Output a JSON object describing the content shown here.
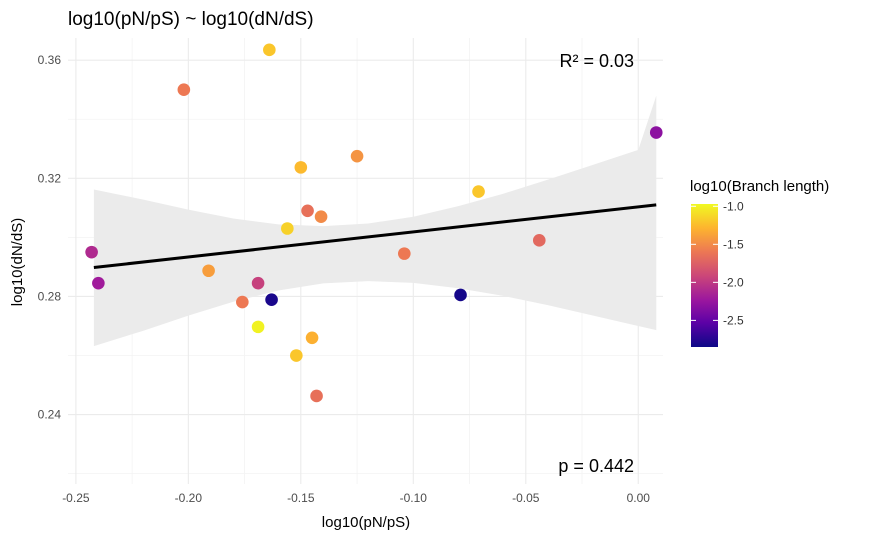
{
  "chart_data": {
    "type": "scatter",
    "title": "log10(pN/pS) ~ log10(dN/dS)",
    "xlabel": "log10(pN/pS)",
    "ylabel": "log10(dN/dS)",
    "xlim": [
      -0.2535,
      0.011
    ],
    "ylim": [
      0.2165,
      0.3675
    ],
    "x_ticks": [
      -0.25,
      -0.2,
      -0.15,
      -0.1,
      -0.05,
      0.0
    ],
    "x_tick_labels": [
      "-0.25",
      "-0.20",
      "-0.15",
      "-0.10",
      "-0.05",
      "0.00"
    ],
    "y_ticks": [
      0.24,
      0.28,
      0.32,
      0.36
    ],
    "y_tick_labels": [
      "0.24",
      "0.28",
      "0.32",
      "0.36"
    ],
    "grid": true,
    "annotations": {
      "r2": "R² = 0.03",
      "p": "p = 0.442"
    },
    "regression": {
      "x": [
        -0.242,
        0.008
      ],
      "y": [
        0.2898,
        0.311
      ],
      "ci_band": [
        {
          "x": -0.242,
          "lo": 0.2632,
          "hi": 0.3162
        },
        {
          "x": -0.22,
          "lo": 0.2684,
          "hi": 0.3128
        },
        {
          "x": -0.2,
          "lo": 0.2735,
          "hi": 0.3094
        },
        {
          "x": -0.18,
          "lo": 0.2782,
          "hi": 0.3064
        },
        {
          "x": -0.16,
          "lo": 0.282,
          "hi": 0.3044
        },
        {
          "x": -0.14,
          "lo": 0.2844,
          "hi": 0.3038
        },
        {
          "x": -0.12,
          "lo": 0.2852,
          "hi": 0.3047
        },
        {
          "x": -0.1,
          "lo": 0.2846,
          "hi": 0.307
        },
        {
          "x": -0.08,
          "lo": 0.2828,
          "hi": 0.3106
        },
        {
          "x": -0.06,
          "lo": 0.2802,
          "hi": 0.3148
        },
        {
          "x": -0.04,
          "lo": 0.277,
          "hi": 0.3196
        },
        {
          "x": -0.02,
          "lo": 0.2735,
          "hi": 0.3246
        },
        {
          "x": 0.0,
          "lo": 0.27,
          "hi": 0.3296
        },
        {
          "x": 0.008,
          "lo": 0.2686,
          "hi": 0.348
        }
      ]
    },
    "color_scale": {
      "name": "plasma",
      "stops": [
        "#0d0887",
        "#5c01a6",
        "#9c179e",
        "#cc4778",
        "#ed7953",
        "#fdb32f",
        "#f0f921"
      ],
      "domain": [
        -2.85,
        -0.97
      ]
    },
    "points": [
      {
        "x": -0.243,
        "y": 0.295,
        "c": -2.1
      },
      {
        "x": -0.24,
        "y": 0.2845,
        "c": -2.2
      },
      {
        "x": -0.202,
        "y": 0.35,
        "c": -1.6
      },
      {
        "x": -0.191,
        "y": 0.2887,
        "c": -1.4
      },
      {
        "x": -0.176,
        "y": 0.2781,
        "c": -1.6
      },
      {
        "x": -0.169,
        "y": 0.2845,
        "c": -1.95
      },
      {
        "x": -0.169,
        "y": 0.2697,
        "c": -1.0
      },
      {
        "x": -0.164,
        "y": 0.3635,
        "c": -1.2
      },
      {
        "x": -0.163,
        "y": 0.2789,
        "c": -2.8
      },
      {
        "x": -0.156,
        "y": 0.303,
        "c": -1.15
      },
      {
        "x": -0.152,
        "y": 0.26,
        "c": -1.2
      },
      {
        "x": -0.15,
        "y": 0.3237,
        "c": -1.25
      },
      {
        "x": -0.147,
        "y": 0.309,
        "c": -1.65
      },
      {
        "x": -0.145,
        "y": 0.266,
        "c": -1.3
      },
      {
        "x": -0.143,
        "y": 0.2463,
        "c": -1.65
      },
      {
        "x": -0.141,
        "y": 0.307,
        "c": -1.5
      },
      {
        "x": -0.125,
        "y": 0.3275,
        "c": -1.45
      },
      {
        "x": -0.104,
        "y": 0.2945,
        "c": -1.6
      },
      {
        "x": -0.079,
        "y": 0.2805,
        "c": -2.82
      },
      {
        "x": -0.071,
        "y": 0.3155,
        "c": -1.2
      },
      {
        "x": -0.044,
        "y": 0.299,
        "c": -1.7
      },
      {
        "x": 0.008,
        "y": 0.3355,
        "c": -2.3
      }
    ],
    "legend": {
      "title": "log10(Branch length)",
      "position": "right",
      "ticks": [
        -1.0,
        -1.5,
        -2.0,
        -2.5
      ],
      "tick_labels": [
        "-1.0",
        "-1.5",
        "-2.0",
        "-2.5"
      ]
    }
  }
}
